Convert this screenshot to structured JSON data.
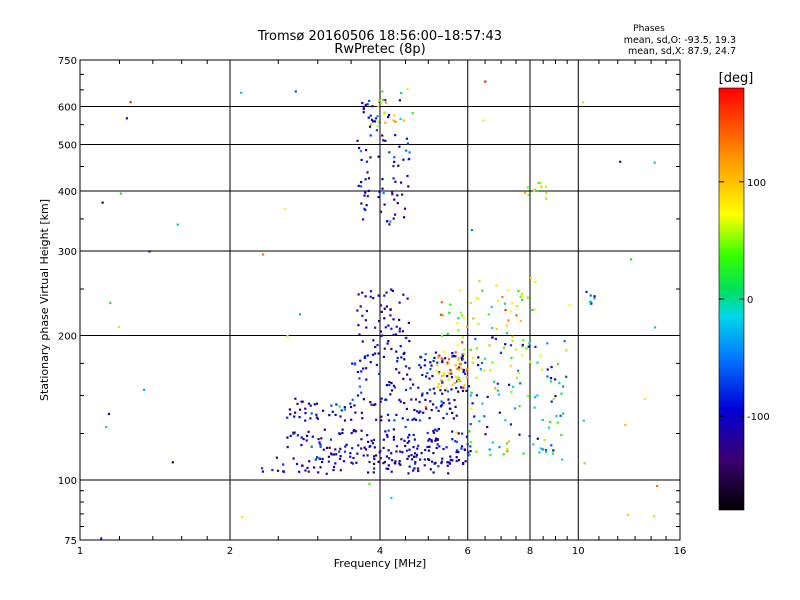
{
  "chart_data": {
    "type": "scatter",
    "title": "Tromsø 20160506 18:56:00–18:57:43",
    "subtitle": "RwPretec (8p)",
    "xlabel": "Frequency [MHz]",
    "ylabel": "Stationary phase Virtual Height [km]",
    "x_scale": "log",
    "y_scale": "log",
    "xlim": [
      1,
      16
    ],
    "ylim": [
      75,
      750
    ],
    "x_ticks": [
      1,
      2,
      4,
      6,
      8,
      10,
      16
    ],
    "x_tick_labels": [
      "1",
      "2",
      "4",
      "6",
      "8",
      "10",
      "16"
    ],
    "y_ticks": [
      75,
      100,
      200,
      300,
      400,
      500,
      600,
      750
    ],
    "y_tick_labels": [
      "75",
      "100",
      "200",
      "300",
      "400",
      "500",
      "600",
      "750"
    ],
    "grid": true,
    "stats": {
      "header": "Phases",
      "line_o": "mean, sd,O: -93.5, 19.3",
      "line_x": "mean, sd,X: 87.9, 24.7"
    },
    "colorbar": {
      "label": "[deg]",
      "range": [
        -180,
        180
      ],
      "ticks": [
        100,
        0,
        -100
      ],
      "tick_labels": [
        "100",
        "0",
        "-100"
      ]
    },
    "point_clusters": [
      {
        "name": "low-branch-105km",
        "x_range": [
          2.3,
          5.6
        ],
        "y_range": [
          103,
          112
        ],
        "phase_mean": -110,
        "phase_sd": 18,
        "count": 70
      },
      {
        "name": "branch-110km",
        "x_range": [
          3.0,
          6.2
        ],
        "y_range": [
          108,
          118
        ],
        "phase_mean": -105,
        "phase_sd": 20,
        "count": 90
      },
      {
        "name": "branch-120km",
        "x_range": [
          2.6,
          6.0
        ],
        "y_range": [
          117,
          128
        ],
        "phase_mean": -100,
        "phase_sd": 22,
        "count": 90
      },
      {
        "name": "branch-140km",
        "x_range": [
          2.6,
          5.8
        ],
        "y_range": [
          133,
          148
        ],
        "phase_mean": -100,
        "phase_sd": 22,
        "count": 100
      },
      {
        "name": "branch-160-180km",
        "x_range": [
          3.5,
          6.0
        ],
        "y_range": [
          150,
          185
        ],
        "phase_mean": -100,
        "phase_sd": 22,
        "count": 110
      },
      {
        "name": "branch-190-240km",
        "x_range": [
          3.6,
          4.6
        ],
        "y_range": [
          185,
          250
        ],
        "phase_mean": -105,
        "phase_sd": 18,
        "count": 60
      },
      {
        "name": "f2-trace",
        "x_range": [
          3.6,
          4.6
        ],
        "y_range": [
          340,
          620
        ],
        "phase_mean": -100,
        "phase_sd": 25,
        "count": 90
      },
      {
        "name": "f2-top",
        "x_range": [
          3.8,
          4.7
        ],
        "y_range": [
          540,
          660
        ],
        "phase_mean": 70,
        "phase_sd": 40,
        "count": 20
      },
      {
        "name": "x-mode-170km",
        "x_range": [
          5.2,
          6.0
        ],
        "y_range": [
          155,
          185
        ],
        "phase_mean": 110,
        "phase_sd": 25,
        "count": 45
      },
      {
        "name": "x-mode-200-260km",
        "x_range": [
          5.3,
          8.2
        ],
        "y_range": [
          185,
          265
        ],
        "phase_mean": 80,
        "phase_sd": 45,
        "count": 60
      },
      {
        "name": "scatter-6-9MHz",
        "x_range": [
          6.0,
          9.5
        ],
        "y_range": [
          110,
          200
        ],
        "phase_mean": -20,
        "phase_sd": 70,
        "count": 120
      },
      {
        "name": "near-8MHz-390km",
        "x_range": [
          7.8,
          8.8
        ],
        "y_range": [
          385,
          420
        ],
        "phase_mean": 60,
        "phase_sd": 25,
        "count": 12
      },
      {
        "name": "near-10.5MHz-240km",
        "x_range": [
          10.3,
          10.8
        ],
        "y_range": [
          232,
          248
        ],
        "phase_mean": -40,
        "phase_sd": 40,
        "count": 8
      },
      {
        "name": "sparse-background",
        "x_range": [
          1.0,
          15.0
        ],
        "y_range": [
          75,
          700
        ],
        "phase_mean": 20,
        "phase_sd": 90,
        "count": 45
      }
    ]
  }
}
